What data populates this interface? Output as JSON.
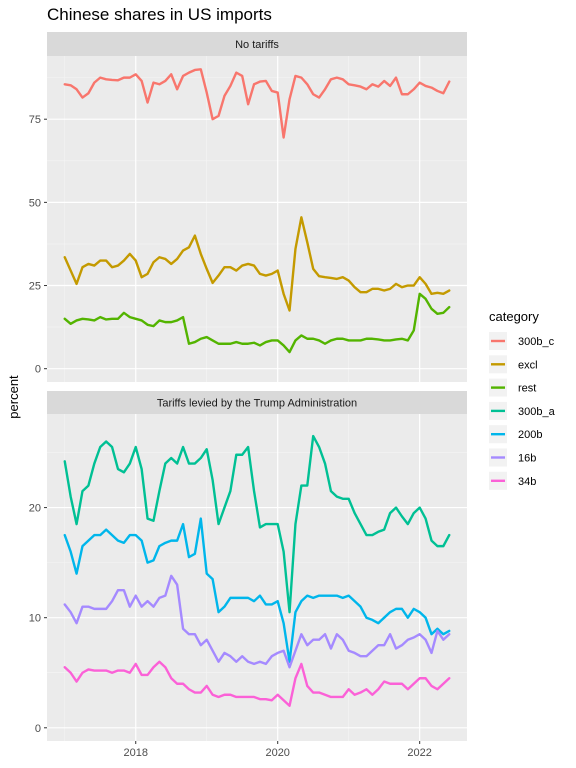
{
  "chart_data": {
    "type": "line",
    "title": "Chinese shares in US imports",
    "ylabel": "percent",
    "xlabel": "",
    "x_start": "2017-01",
    "x_step": "month",
    "xlim": [
      "2016-10",
      "2022-09"
    ],
    "xticks": [
      "2018",
      "2020",
      "2022"
    ],
    "x_minor_gridlines": [
      "2017",
      "2019",
      "2021"
    ],
    "grid": true,
    "legend": {
      "title": "category",
      "placement": "right"
    },
    "panels": [
      {
        "label": "No tariffs",
        "ylim": [
          -4,
          94
        ],
        "yticks": [
          0,
          25,
          50,
          75
        ],
        "series": [
          {
            "name": "300b_c",
            "color": "#F8766D",
            "values": [
              85.5,
              85.2,
              84.0,
              81.5,
              82.8,
              86.0,
              87.5,
              87.0,
              86.8,
              86.7,
              87.5,
              87.5,
              88.5,
              86.5,
              80.0,
              86.0,
              85.5,
              86.5,
              88.5,
              84.0,
              88.0,
              89.0,
              89.8,
              90.0,
              83.0,
              75.0,
              76.0,
              82.0,
              85.0,
              89.0,
              88.0,
              79.5,
              85.5,
              86.3,
              86.5,
              83.5,
              83.0,
              69.5,
              81.0,
              88.0,
              87.5,
              85.5,
              82.5,
              81.5,
              84.0,
              87.0,
              87.5,
              87.0,
              85.5,
              85.2,
              84.8,
              84.0,
              85.5,
              84.8,
              86.5,
              85.0,
              87.5,
              82.5,
              82.5,
              84.0,
              86.0,
              85.0,
              84.5,
              83.5,
              82.8,
              86.3
            ]
          },
          {
            "name": "excl",
            "color": "#C49A00",
            "values": [
              33.5,
              29.5,
              25.5,
              30.5,
              31.5,
              31.0,
              32.5,
              32.5,
              30.5,
              31.0,
              32.5,
              34.5,
              32.5,
              27.5,
              28.5,
              32.0,
              33.5,
              33.0,
              31.5,
              33.0,
              35.5,
              36.5,
              40.0,
              34.5,
              30.0,
              25.8,
              28.0,
              30.5,
              30.5,
              29.5,
              31.0,
              31.5,
              31.0,
              28.5,
              28.0,
              28.5,
              29.5,
              22.5,
              17.5,
              36.0,
              45.5,
              38.0,
              30.0,
              27.8,
              27.5,
              27.3,
              27.0,
              27.5,
              26.5,
              24.5,
              23.0,
              23.0,
              24.0,
              24.0,
              23.5,
              24.0,
              25.5,
              24.5,
              25.0,
              25.0,
              27.5,
              25.5,
              22.5,
              22.8,
              22.5,
              23.5
            ]
          },
          {
            "name": "rest",
            "color": "#53B400",
            "values": [
              15.0,
              13.5,
              14.5,
              15.0,
              14.8,
              14.5,
              15.5,
              14.8,
              15.0,
              15.0,
              16.8,
              15.5,
              15.0,
              14.5,
              13.2,
              12.8,
              14.5,
              14.0,
              14.0,
              14.5,
              15.5,
              7.5,
              8.0,
              9.0,
              9.5,
              8.5,
              7.5,
              7.5,
              7.5,
              8.0,
              7.5,
              7.5,
              7.8,
              7.0,
              8.0,
              8.5,
              8.5,
              7.0,
              5.0,
              8.5,
              10.0,
              9.0,
              9.0,
              8.5,
              7.5,
              8.5,
              9.0,
              9.0,
              8.5,
              8.5,
              8.5,
              9.0,
              9.0,
              8.8,
              8.5,
              8.5,
              8.8,
              9.0,
              8.5,
              11.5,
              22.5,
              21.0,
              18.0,
              16.5,
              16.8,
              18.5
            ]
          }
        ]
      },
      {
        "label": "Tariffs levied by the Trump Administration",
        "ylim": [
          -1.2,
          28.5
        ],
        "yticks": [
          0,
          10,
          20
        ],
        "series": [
          {
            "name": "300b_a",
            "color": "#00C094",
            "values": [
              24.2,
              21.0,
              18.5,
              21.5,
              22.0,
              24.0,
              25.5,
              26.0,
              25.5,
              23.5,
              23.2,
              24.0,
              25.5,
              23.5,
              19.0,
              18.8,
              21.5,
              24.0,
              24.5,
              24.0,
              25.5,
              24.0,
              24.0,
              24.5,
              25.3,
              22.5,
              18.5,
              20.0,
              21.5,
              24.8,
              24.8,
              25.5,
              21.5,
              18.2,
              18.5,
              18.5,
              18.5,
              16.0,
              10.5,
              18.5,
              22.0,
              22.0,
              26.5,
              25.5,
              24.0,
              21.5,
              21.0,
              20.8,
              20.8,
              19.5,
              18.5,
              17.5,
              17.5,
              17.8,
              18.0,
              19.5,
              20.0,
              19.2,
              18.5,
              19.5,
              20.0,
              19.0,
              17.0,
              16.5,
              16.5,
              17.5
            ]
          },
          {
            "name": "200b",
            "color": "#00B6EB",
            "values": [
              17.5,
              16.0,
              14.0,
              16.5,
              17.0,
              17.5,
              17.5,
              18.0,
              17.5,
              17.0,
              16.8,
              17.5,
              17.5,
              17.0,
              15.0,
              15.2,
              16.5,
              16.8,
              17.0,
              17.0,
              18.5,
              15.5,
              15.8,
              19.0,
              14.0,
              13.5,
              10.5,
              11.0,
              11.8,
              11.8,
              11.8,
              11.8,
              11.5,
              12.0,
              11.2,
              11.2,
              11.5,
              9.5,
              6.0,
              10.5,
              11.5,
              12.0,
              11.8,
              12.0,
              12.0,
              12.0,
              12.0,
              11.8,
              12.0,
              11.5,
              11.0,
              10.0,
              9.8,
              9.5,
              10.0,
              10.5,
              10.8,
              10.8,
              10.0,
              10.8,
              10.5,
              10.0,
              8.5,
              9.0,
              8.5,
              8.8
            ]
          },
          {
            "name": "16b",
            "color": "#A58AFF",
            "values": [
              11.2,
              10.5,
              9.5,
              11.0,
              11.0,
              10.8,
              10.8,
              10.8,
              11.5,
              12.5,
              12.5,
              11.0,
              12.0,
              11.0,
              11.5,
              11.0,
              11.8,
              12.0,
              13.8,
              13.0,
              9.0,
              8.5,
              8.5,
              7.5,
              8.0,
              7.0,
              6.0,
              6.8,
              6.5,
              6.0,
              6.5,
              6.0,
              5.8,
              6.0,
              5.8,
              6.5,
              6.8,
              7.0,
              5.5,
              7.0,
              8.5,
              7.5,
              8.0,
              8.0,
              8.5,
              7.2,
              8.5,
              8.0,
              7.0,
              6.8,
              6.5,
              6.5,
              7.0,
              7.5,
              7.5,
              8.5,
              7.2,
              7.5,
              8.0,
              8.2,
              8.5,
              8.0,
              6.8,
              8.8,
              8.0,
              8.5
            ]
          },
          {
            "name": "34b",
            "color": "#FB61D7",
            "values": [
              5.5,
              5.0,
              4.2,
              5.0,
              5.3,
              5.2,
              5.2,
              5.2,
              5.0,
              5.2,
              5.2,
              5.0,
              5.8,
              4.8,
              4.8,
              5.5,
              6.0,
              5.5,
              4.5,
              4.0,
              4.0,
              3.5,
              3.2,
              3.2,
              3.8,
              3.0,
              2.8,
              3.0,
              3.0,
              2.8,
              2.8,
              2.8,
              2.8,
              2.6,
              2.6,
              2.5,
              3.0,
              2.5,
              2.0,
              4.5,
              5.8,
              3.8,
              3.2,
              3.2,
              3.0,
              2.8,
              2.8,
              2.8,
              3.5,
              3.0,
              3.2,
              3.5,
              3.0,
              3.5,
              4.2,
              4.0,
              4.0,
              4.0,
              3.5,
              4.0,
              4.5,
              4.5,
              3.8,
              3.5,
              4.0,
              4.5
            ]
          }
        ]
      }
    ]
  }
}
